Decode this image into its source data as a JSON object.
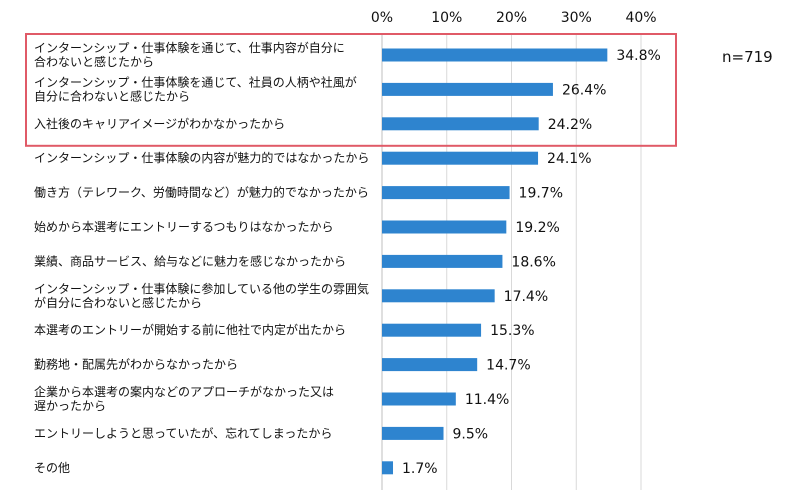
{
  "chart_data": {
    "type": "bar",
    "orientation": "horizontal",
    "title": "",
    "xlabel": "",
    "ylabel": "",
    "xlim": [
      0,
      40
    ],
    "ticks": [
      "0%",
      "10%",
      "20%",
      "30%",
      "40%"
    ],
    "tick_values": [
      0,
      10,
      20,
      30,
      40
    ],
    "grid": true,
    "sample_size": "n=719",
    "bar_color": "#2e84cf",
    "highlight_color": "#e05a67",
    "highlighted_count": 3,
    "categories": [
      [
        "インターンシップ・仕事体験を通じて、仕事内容が自分に",
        "合わないと感じたから"
      ],
      [
        "インターンシップ・仕事体験を通じて、社員の人柄や社風が",
        "自分に合わないと感じたから"
      ],
      [
        "入社後のキャリアイメージがわかなかったから"
      ],
      [
        "インターンシップ・仕事体験の内容が魅力的ではなかったから"
      ],
      [
        "働き方（テレワーク、労働時間など）が魅力的でなかったから"
      ],
      [
        "始めから本選考にエントリーするつもりはなかったから"
      ],
      [
        "業績、商品サービス、給与などに魅力を感じなかったから"
      ],
      [
        "インターンシップ・仕事体験に参加している他の学生の雰囲気",
        "が自分に合わないと感じたから"
      ],
      [
        "本選考のエントリーが開始する前に他社で内定が出たから"
      ],
      [
        "勤務地・配属先がわからなかったから"
      ],
      [
        "企業から本選考の案内などのアプローチがなかった又は",
        "遅かったから"
      ],
      [
        "エントリーしようと思っていたが、忘れてしまったから"
      ],
      [
        "その他"
      ]
    ],
    "values": [
      34.8,
      26.4,
      24.2,
      24.1,
      19.7,
      19.2,
      18.6,
      17.4,
      15.3,
      14.7,
      11.4,
      9.5,
      1.7
    ],
    "value_labels": [
      "34.8%",
      "26.4%",
      "24.2%",
      "24.1%",
      "19.7%",
      "19.2%",
      "18.6%",
      "17.4%",
      "15.3%",
      "14.7%",
      "11.4%",
      "9.5%",
      "1.7%"
    ]
  }
}
